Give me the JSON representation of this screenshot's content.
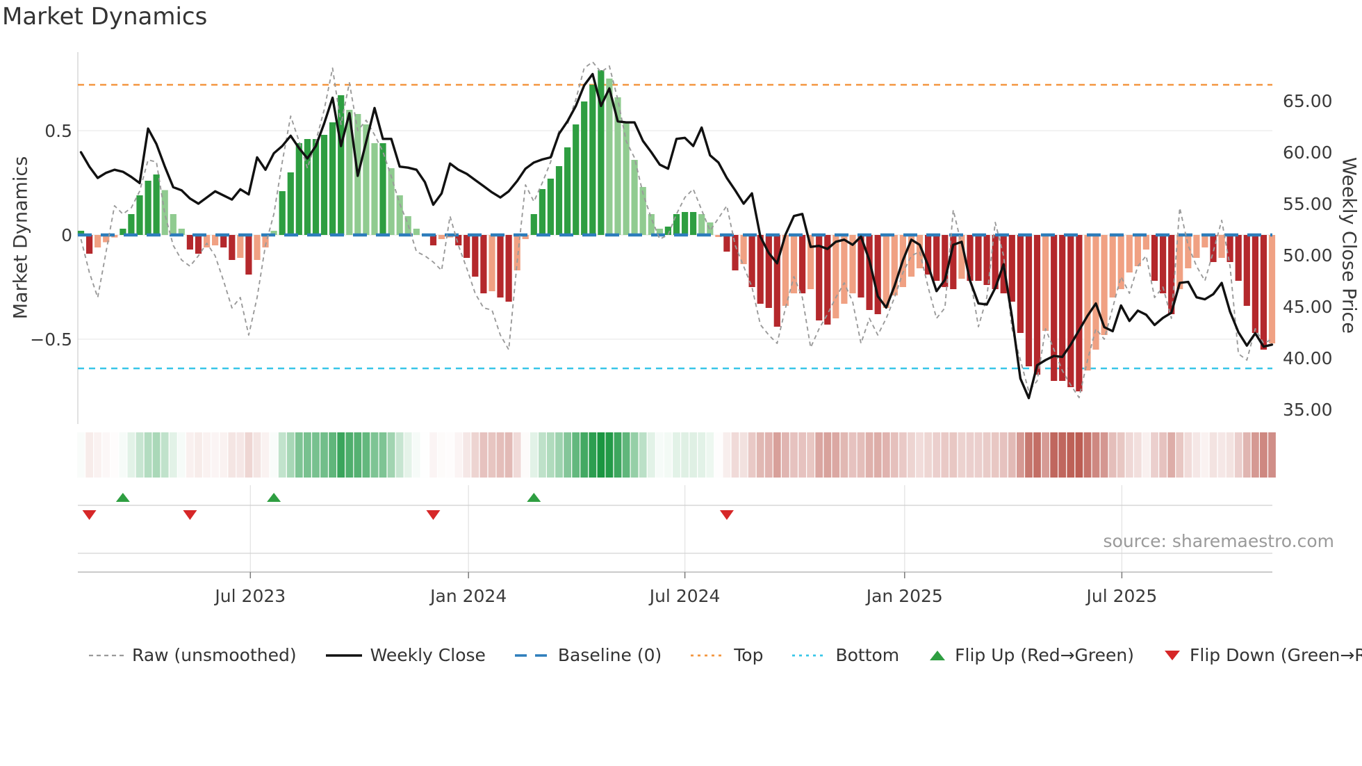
{
  "title": "Market Dynamics",
  "source": {
    "text": "source: sharemaestro.com"
  },
  "left_axis": {
    "title": "Market Dynamics",
    "tick_labels": [
      "0.5",
      "0",
      "−0.5"
    ],
    "tick_values": [
      0.5,
      0,
      -0.5
    ],
    "range": [
      -0.907,
      0.877
    ]
  },
  "right_axis": {
    "title": "Weekly Close Price",
    "tick_labels": [
      "65.00",
      "60.00",
      "55.00",
      "50.00",
      "45.00",
      "40.00",
      "35.00"
    ],
    "tick_values": [
      65,
      60,
      55,
      50,
      45,
      40,
      35
    ],
    "range": [
      33.6,
      69.7
    ]
  },
  "x_axis": {
    "tick_labels": [
      "Jul 2023",
      "Jan 2024",
      "Jul 2024",
      "Jan 2025",
      "Jul 2025"
    ],
    "tick_week_positions": [
      20.2,
      46.2,
      72.0,
      98.2,
      124.1
    ]
  },
  "legend": {
    "items": [
      {
        "label": "Raw (unsmoothed)",
        "swatch": "dashed-line",
        "color": "#9a9a9a"
      },
      {
        "label": "Weekly Close",
        "swatch": "solid-line",
        "color": "#111111"
      },
      {
        "label": "Baseline (0)",
        "swatch": "long-dash-line",
        "color": "#2d7dbb"
      },
      {
        "label": "Top",
        "swatch": "dotted-line",
        "color": "#f49640"
      },
      {
        "label": "Bottom",
        "swatch": "dotted-line",
        "color": "#38c6e8"
      },
      {
        "label": "Flip Up (Red→Green)",
        "swatch": "triangle-up",
        "color": "#2e9e41"
      },
      {
        "label": "Flip Down (Green→Red)",
        "swatch": "triangle-down",
        "color": "#d62728"
      }
    ]
  },
  "colors": {
    "bar_pos_strong": "#2e9e41",
    "bar_pos_weak": "#90cb90",
    "bar_neg_strong": "#b4282c",
    "bar_neg_weak": "#f0a183",
    "close_line": "#111111",
    "raw_line": "#9a9a9a",
    "baseline_line": "#2d7dbb",
    "top_line": "#f49640",
    "bottom_line": "#38c6e8",
    "flip_up_marker": "#2e9e41",
    "flip_down_marker": "#d62728",
    "heat_pos": "#1a9641",
    "heat_neg": "#b9564c",
    "grid": "#ededed",
    "panel_line": "#cfcfcf",
    "axis_spine": "#b8b8b8",
    "tick_text": "#3a3a3a"
  },
  "chart_data": {
    "type": "bar",
    "frequency": "weekly",
    "n_weeks": 143,
    "start_date_approx": "2023-02-13",
    "end_date_approx": "2025-11-03",
    "title": "Market Dynamics",
    "xlabel": "",
    "ylabel_left": "Market Dynamics",
    "ylabel_right": "Weekly Close Price",
    "left_ylim": [
      -0.907,
      0.877
    ],
    "right_ylim": [
      33.6,
      69.7
    ],
    "grid": "horizontal only (0.5, 0, -0.5)",
    "legend_position": "bottom",
    "reference_lines": {
      "baseline": 0,
      "top": 0.72,
      "bottom": -0.64
    },
    "flip_up_weeks": [
      5,
      23,
      54
    ],
    "flip_down_weeks": [
      1,
      13,
      42,
      77
    ],
    "bar_shade_rule": "darker shade when |value| >= |previous value| (strengthening), lighter when weakening",
    "heatmap_strip": "one cell per week, red-white-green diverging, intensity proportional to |oscillator|",
    "series": [
      {
        "name": "Oscillator (bars)",
        "type": "bar",
        "axis": "left",
        "values": [
          0.02,
          -0.09,
          -0.06,
          -0.035,
          -0.012,
          0.03,
          0.1,
          0.19,
          0.26,
          0.29,
          0.215,
          0.1,
          0.03,
          -0.07,
          -0.09,
          -0.06,
          -0.05,
          -0.06,
          -0.12,
          -0.11,
          -0.19,
          -0.12,
          -0.06,
          0.02,
          0.21,
          0.3,
          0.44,
          0.46,
          0.46,
          0.48,
          0.54,
          0.67,
          0.6,
          0.58,
          0.53,
          0.44,
          0.44,
          0.32,
          0.19,
          0.09,
          0.03,
          0.005,
          -0.05,
          -0.02,
          -0.012,
          -0.05,
          -0.11,
          -0.2,
          -0.28,
          -0.27,
          -0.3,
          -0.32,
          -0.17,
          -0.02,
          0.1,
          0.22,
          0.27,
          0.33,
          0.42,
          0.53,
          0.64,
          0.72,
          0.79,
          0.75,
          0.66,
          0.54,
          0.36,
          0.23,
          0.1,
          0.03,
          0.04,
          0.1,
          0.11,
          0.11,
          0.1,
          0.06,
          -0.01,
          -0.08,
          -0.17,
          -0.14,
          -0.25,
          -0.33,
          -0.35,
          -0.44,
          -0.34,
          -0.28,
          -0.28,
          -0.26,
          -0.41,
          -0.43,
          -0.4,
          -0.33,
          -0.28,
          -0.3,
          -0.36,
          -0.38,
          -0.35,
          -0.29,
          -0.25,
          -0.2,
          -0.16,
          -0.19,
          -0.22,
          -0.25,
          -0.26,
          -0.21,
          -0.22,
          -0.22,
          -0.24,
          -0.26,
          -0.28,
          -0.32,
          -0.47,
          -0.63,
          -0.67,
          -0.46,
          -0.7,
          -0.7,
          -0.73,
          -0.75,
          -0.65,
          -0.55,
          -0.48,
          -0.3,
          -0.26,
          -0.18,
          -0.15,
          -0.07,
          -0.22,
          -0.28,
          -0.38,
          -0.26,
          -0.16,
          -0.11,
          -0.06,
          -0.13,
          -0.11,
          -0.13,
          -0.22,
          -0.34,
          -0.47,
          -0.55,
          -0.52
        ]
      },
      {
        "name": "Raw (unsmoothed)",
        "type": "dashed-line",
        "axis": "left",
        "values": [
          -0.02,
          -0.18,
          -0.3,
          -0.08,
          0.14,
          0.1,
          0.13,
          0.21,
          0.36,
          0.35,
          0.1,
          -0.05,
          -0.12,
          -0.15,
          -0.1,
          -0.04,
          -0.1,
          -0.22,
          -0.35,
          -0.3,
          -0.48,
          -0.3,
          -0.05,
          0.1,
          0.35,
          0.57,
          0.45,
          0.32,
          0.45,
          0.6,
          0.8,
          0.53,
          0.73,
          0.5,
          0.55,
          0.48,
          0.4,
          0.28,
          0.15,
          0.05,
          -0.08,
          -0.1,
          -0.13,
          -0.17,
          0.09,
          -0.05,
          -0.16,
          -0.28,
          -0.35,
          -0.36,
          -0.48,
          -0.55,
          -0.13,
          0.24,
          0.16,
          0.25,
          0.35,
          0.5,
          0.53,
          0.65,
          0.8,
          0.83,
          0.78,
          0.81,
          0.65,
          0.45,
          0.37,
          0.2,
          0.08,
          -0.02,
          0.0,
          0.1,
          0.18,
          0.22,
          0.12,
          0.02,
          0.08,
          0.14,
          -0.05,
          -0.15,
          -0.25,
          -0.43,
          -0.48,
          -0.52,
          -0.35,
          -0.2,
          -0.3,
          -0.54,
          -0.45,
          -0.38,
          -0.3,
          -0.23,
          -0.32,
          -0.52,
          -0.4,
          -0.48,
          -0.4,
          -0.3,
          -0.18,
          -0.1,
          -0.08,
          -0.25,
          -0.4,
          -0.35,
          0.12,
          -0.05,
          -0.2,
          -0.44,
          -0.3,
          0.06,
          -0.1,
          -0.45,
          -0.6,
          -0.75,
          -0.7,
          -0.45,
          -0.55,
          -0.65,
          -0.72,
          -0.78,
          -0.6,
          -0.45,
          -0.5,
          -0.35,
          -0.2,
          -0.28,
          -0.15,
          -0.1,
          -0.3,
          -0.25,
          -0.4,
          0.13,
          -0.05,
          -0.15,
          -0.22,
          -0.08,
          0.07,
          -0.15,
          -0.57,
          -0.6,
          -0.45,
          -0.52,
          -0.5
        ]
      },
      {
        "name": "Weekly Close",
        "type": "line",
        "axis": "right",
        "values": [
          60.0,
          58.6,
          57.5,
          58.0,
          58.3,
          58.1,
          57.6,
          57.0,
          62.3,
          60.8,
          58.6,
          56.6,
          56.3,
          55.5,
          55.0,
          55.6,
          56.2,
          55.8,
          55.4,
          56.4,
          55.9,
          59.5,
          58.3,
          59.9,
          60.6,
          61.6,
          60.4,
          59.4,
          60.6,
          62.8,
          65.3,
          60.6,
          63.8,
          57.7,
          61.0,
          64.3,
          61.3,
          61.3,
          58.6,
          58.5,
          58.3,
          57.1,
          54.9,
          56.0,
          58.9,
          58.3,
          57.9,
          57.3,
          56.7,
          56.1,
          55.6,
          56.2,
          57.2,
          58.4,
          59.0,
          59.3,
          59.5,
          61.8,
          63.0,
          64.5,
          66.5,
          67.6,
          64.5,
          66.2,
          63.0,
          62.9,
          62.9,
          61.1,
          60.0,
          58.8,
          58.4,
          61.3,
          61.4,
          60.6,
          62.4,
          59.7,
          59.0,
          57.5,
          56.3,
          55.0,
          56.0,
          51.8,
          50.2,
          49.2,
          52.0,
          53.8,
          54.0,
          50.8,
          50.9,
          50.6,
          51.3,
          51.5,
          51.0,
          51.8,
          49.5,
          46.0,
          44.9,
          47.0,
          49.5,
          51.5,
          51.0,
          49.0,
          46.5,
          47.6,
          51.0,
          51.3,
          47.5,
          45.3,
          45.2,
          46.8,
          49.1,
          44.0,
          38.0,
          36.1,
          39.3,
          39.8,
          40.2,
          40.1,
          41.3,
          42.7,
          44.1,
          45.3,
          43.0,
          42.6,
          45.1,
          43.6,
          44.6,
          44.2,
          43.2,
          43.9,
          44.4,
          47.3,
          47.4,
          45.9,
          45.7,
          46.2,
          47.3,
          44.5,
          42.5,
          41.2,
          42.4,
          41.1,
          41.3
        ]
      }
    ]
  }
}
